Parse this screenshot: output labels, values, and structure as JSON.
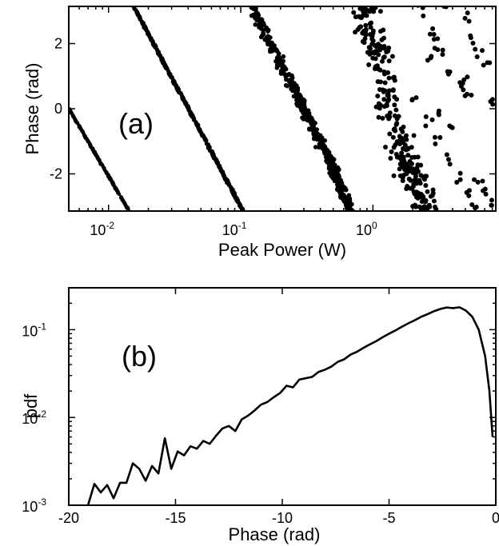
{
  "chart_data": [
    {
      "panel": "(a)",
      "type": "scatter",
      "xlabel": "Peak Power (W)",
      "ylabel": "Phase (rad)",
      "xscale": "log",
      "xlim": [
        0.005,
        8.5
      ],
      "ylim": [
        -3.1416,
        3.1416
      ],
      "xticks": [
        {
          "value": 0.01,
          "base": "10",
          "exp": "-2"
        },
        {
          "value": 0.1,
          "base": "10",
          "exp": "-1"
        },
        {
          "value": 1,
          "base": "10",
          "exp": "0"
        }
      ],
      "yticks": [
        {
          "value": -2,
          "label": "-2"
        },
        {
          "value": 0,
          "label": "0"
        },
        {
          "value": 2,
          "label": "2"
        }
      ],
      "grid": false,
      "marker_color": "#000000",
      "series": [
        {
          "points": [
            [
              0.005,
              0.0
            ],
            [
              0.0143,
              -3.14
            ]
          ]
        },
        {
          "points": [
            [
              0.0155,
              3.14
            ],
            [
              0.104,
              -3.14
            ]
          ]
        },
        {
          "points": [
            [
              0.122,
              3.14
            ],
            [
              0.26,
              0.5
            ],
            [
              0.46,
              -1.5
            ],
            [
              0.68,
              -3.14
            ]
          ]
        },
        {
          "points": [
            [
              0.85,
              3.14
            ],
            [
              1.05,
              1.8
            ],
            [
              1.25,
              0.4
            ],
            [
              1.55,
              -0.9
            ],
            [
              1.95,
              -2.0
            ],
            [
              2.6,
              -3.14
            ]
          ]
        },
        {
          "points": [
            [
              2.4,
              3.0
            ],
            [
              2.9,
              2.4
            ],
            [
              3.3,
              1.8
            ],
            [
              3.8,
              1.1
            ],
            [
              2.1,
              0.3
            ],
            [
              2.6,
              -0.4
            ],
            [
              3.1,
              -0.9
            ],
            [
              3.7,
              -1.5
            ],
            [
              4.4,
              -2.1
            ],
            [
              5.3,
              -2.7
            ],
            [
              6.0,
              -3.05
            ],
            [
              3.6,
              3.1
            ],
            [
              3.0,
              2.0
            ],
            [
              2.7,
              1.6
            ],
            [
              4.7,
              0.9
            ],
            [
              4.9,
              0.6
            ],
            [
              5.1,
              0.4
            ],
            [
              5.2,
              2.8
            ],
            [
              5.6,
              2.2
            ],
            [
              6.3,
              1.8
            ],
            [
              2.3,
              -1.6
            ],
            [
              2.5,
              -2.2
            ],
            [
              2.8,
              -2.6
            ],
            [
              3.3,
              -0.2
            ],
            [
              3.9,
              -0.6
            ],
            [
              6.4,
              -2.2
            ],
            [
              7.0,
              -2.6
            ],
            [
              7.7,
              -2.9
            ],
            [
              8.0,
              0.2
            ],
            [
              7.2,
              1.4
            ]
          ]
        }
      ]
    },
    {
      "panel": "(b)",
      "type": "line",
      "xlabel": "Phase (rad)",
      "ylabel": "pdf",
      "yscale": "log",
      "xlim": [
        -20,
        0
      ],
      "ylim": [
        0.001,
        0.3
      ],
      "xticks": [
        {
          "value": -20,
          "label": "-20"
        },
        {
          "value": -15,
          "label": "-15"
        },
        {
          "value": -10,
          "label": "-10"
        },
        {
          "value": -5,
          "label": "-5"
        },
        {
          "value": 0,
          "label": "0"
        }
      ],
      "yticks": [
        {
          "value": 0.001,
          "base": "10",
          "exp": "-3"
        },
        {
          "value": 0.01,
          "base": "10",
          "exp": "-2"
        },
        {
          "value": 0.1,
          "base": "10",
          "exp": "-1"
        }
      ],
      "grid": false,
      "line_color": "#000000",
      "x": [
        -19.1,
        -18.8,
        -18.5,
        -18.2,
        -17.9,
        -17.6,
        -17.3,
        -17.0,
        -16.7,
        -16.4,
        -16.1,
        -15.8,
        -15.5,
        -15.2,
        -14.9,
        -14.6,
        -14.3,
        -14.0,
        -13.7,
        -13.4,
        -13.1,
        -12.8,
        -12.5,
        -12.2,
        -11.9,
        -11.6,
        -11.3,
        -11.0,
        -10.7,
        -10.4,
        -10.1,
        -9.8,
        -9.5,
        -9.2,
        -8.9,
        -8.6,
        -8.3,
        -8.0,
        -7.7,
        -7.4,
        -7.1,
        -6.8,
        -6.5,
        -6.2,
        -5.9,
        -5.6,
        -5.3,
        -5.0,
        -4.7,
        -4.4,
        -4.1,
        -3.8,
        -3.5,
        -3.2,
        -2.9,
        -2.6,
        -2.3,
        -2.0,
        -1.7,
        -1.4,
        -1.1,
        -0.8,
        -0.5,
        -0.3,
        -0.15
      ],
      "values": [
        0.001,
        0.00175,
        0.0014,
        0.0017,
        0.0012,
        0.0018,
        0.0018,
        0.003,
        0.0026,
        0.0019,
        0.0028,
        0.0023,
        0.0058,
        0.0026,
        0.0041,
        0.0037,
        0.0047,
        0.0044,
        0.0054,
        0.005,
        0.0062,
        0.0075,
        0.008,
        0.007,
        0.0095,
        0.0105,
        0.012,
        0.014,
        0.015,
        0.017,
        0.019,
        0.023,
        0.022,
        0.027,
        0.028,
        0.029,
        0.033,
        0.035,
        0.038,
        0.043,
        0.046,
        0.052,
        0.056,
        0.062,
        0.068,
        0.074,
        0.082,
        0.09,
        0.098,
        0.108,
        0.118,
        0.128,
        0.14,
        0.15,
        0.162,
        0.172,
        0.179,
        0.176,
        0.18,
        0.165,
        0.14,
        0.1,
        0.05,
        0.02,
        0.006
      ]
    }
  ]
}
